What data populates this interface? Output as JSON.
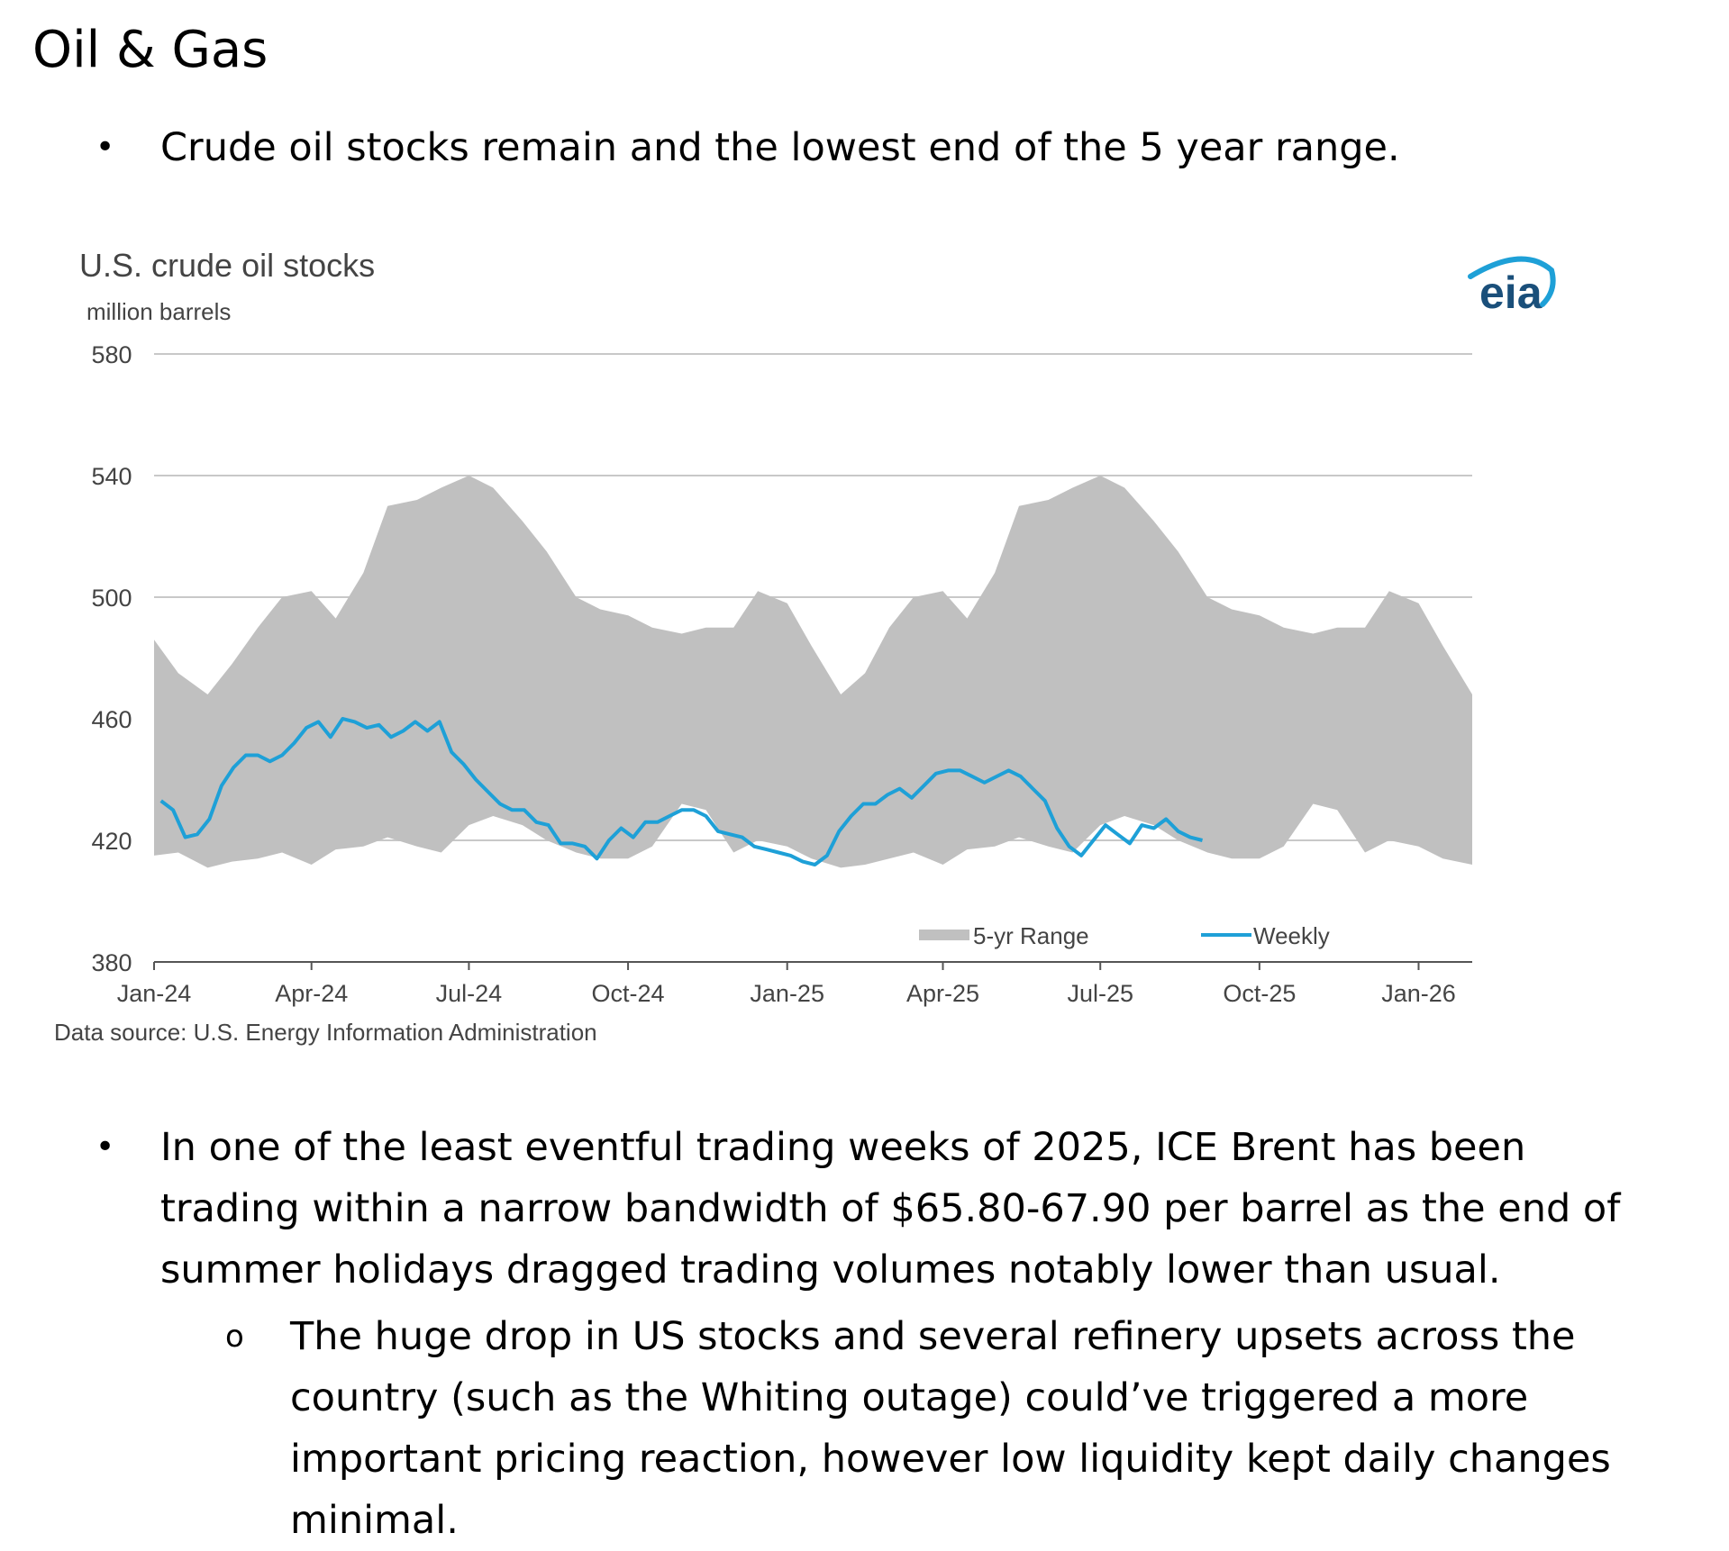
{
  "heading": "Oil & Gas",
  "bullets": {
    "first": "Crude oil stocks remain and the lowest end of the 5 year range.",
    "second_lines": [
      "In one of the least eventful trading weeks of 2025, ICE Brent has been",
      "trading within a narrow bandwidth of $65.80-67.90 per barrel as the end of",
      "summer holidays dragged trading volumes notably lower than usual."
    ],
    "sub_lines": [
      "The huge drop in US stocks and several refinery upsets across the",
      "country (such as the Whiting outage) could’ve triggered a more",
      "important pricing reaction, however low liquidity kept daily changes",
      "minimal."
    ],
    "bullet_glyph": "•",
    "sub_bullet_glyph": "o"
  },
  "chart_data": {
    "type": "area",
    "title": "U.S. crude oil stocks",
    "ylabel": "million barrels",
    "source": "Data source: U.S. Energy Information Administration",
    "logo_text": "eia",
    "ylim": [
      380,
      580
    ],
    "yticks": [
      380,
      420,
      460,
      500,
      540,
      580
    ],
    "xlim": [
      "2024-01-01",
      "2026-02-01"
    ],
    "xtick_dates": [
      "2024-01-01",
      "2024-04-01",
      "2024-07-01",
      "2024-10-01",
      "2025-01-01",
      "2025-04-01",
      "2025-07-01",
      "2025-10-01",
      "2026-01-01"
    ],
    "xtick_labels": [
      "Jan-24",
      "Apr-24",
      "Jul-24",
      "Oct-24",
      "Jan-25",
      "Apr-25",
      "Jul-25",
      "Oct-25",
      "Jan-26"
    ],
    "grid": true,
    "legend_position": "bottom-right",
    "colors": {
      "range": "#c0c0c0",
      "weekly": "#1ea0d7",
      "grid": "#c8c8c8",
      "axis": "#555555",
      "logo": "#1a4f7a",
      "logo_arc": "#1ea0d7"
    },
    "series": [
      {
        "name": "5-yr Range",
        "kind": "band",
        "x": [
          "2024-01-01",
          "2024-01-15",
          "2024-02-01",
          "2024-02-15",
          "2024-03-01",
          "2024-03-15",
          "2024-04-01",
          "2024-04-15",
          "2024-05-01",
          "2024-05-15",
          "2024-06-01",
          "2024-06-15",
          "2024-07-01",
          "2024-07-15",
          "2024-08-01",
          "2024-08-15",
          "2024-09-01",
          "2024-09-15",
          "2024-10-01",
          "2024-10-15",
          "2024-11-01",
          "2024-11-15",
          "2024-12-01",
          "2024-12-15",
          "2025-01-01",
          "2025-01-15",
          "2025-02-01",
          "2025-02-15",
          "2025-03-01",
          "2025-03-15",
          "2025-04-01",
          "2025-04-15",
          "2025-05-01",
          "2025-05-15",
          "2025-06-01",
          "2025-06-15",
          "2025-07-01",
          "2025-07-15",
          "2025-08-01",
          "2025-08-15",
          "2025-09-01",
          "2025-09-15",
          "2025-10-01",
          "2025-10-15",
          "2025-11-01",
          "2025-11-15",
          "2025-12-01",
          "2025-12-15",
          "2026-01-01",
          "2026-01-15",
          "2026-02-01"
        ],
        "high": [
          486,
          475,
          468,
          478,
          490,
          500,
          502,
          493,
          508,
          530,
          532,
          536,
          540,
          536,
          525,
          515,
          500,
          496,
          494,
          490,
          488,
          490,
          490,
          502,
          498,
          484,
          468,
          475,
          490,
          500,
          502,
          493,
          508,
          530,
          532,
          536,
          540,
          536,
          525,
          515,
          500,
          496,
          494,
          490,
          488,
          490,
          490,
          502,
          498,
          484,
          468
        ],
        "low": [
          415,
          416,
          411,
          413,
          414,
          416,
          412,
          417,
          418,
          421,
          418,
          416,
          425,
          428,
          425,
          420,
          416,
          414,
          414,
          418,
          432,
          430,
          416,
          420,
          418,
          414,
          411,
          412,
          414,
          416,
          412,
          417,
          418,
          421,
          418,
          416,
          425,
          428,
          425,
          420,
          416,
          414,
          414,
          418,
          432,
          430,
          416,
          420,
          418,
          414,
          412
        ]
      },
      {
        "name": "Weekly",
        "kind": "line",
        "x": [
          "2024-01-05",
          "2024-01-12",
          "2024-01-19",
          "2024-01-26",
          "2024-02-02",
          "2024-02-09",
          "2024-02-16",
          "2024-02-23",
          "2024-03-01",
          "2024-03-08",
          "2024-03-15",
          "2024-03-22",
          "2024-03-29",
          "2024-04-05",
          "2024-04-12",
          "2024-04-19",
          "2024-04-26",
          "2024-05-03",
          "2024-05-10",
          "2024-05-17",
          "2024-05-24",
          "2024-05-31",
          "2024-06-07",
          "2024-06-14",
          "2024-06-21",
          "2024-06-28",
          "2024-07-05",
          "2024-07-12",
          "2024-07-19",
          "2024-07-26",
          "2024-08-02",
          "2024-08-09",
          "2024-08-16",
          "2024-08-23",
          "2024-08-30",
          "2024-09-06",
          "2024-09-13",
          "2024-09-20",
          "2024-09-27",
          "2024-10-04",
          "2024-10-11",
          "2024-10-18",
          "2024-10-25",
          "2024-11-01",
          "2024-11-08",
          "2024-11-15",
          "2024-11-22",
          "2024-11-29",
          "2024-12-06",
          "2024-12-13",
          "2024-12-20",
          "2024-12-27",
          "2025-01-03",
          "2025-01-10",
          "2025-01-17",
          "2025-01-24",
          "2025-01-31",
          "2025-02-07",
          "2025-02-14",
          "2025-02-21",
          "2025-02-28",
          "2025-03-07",
          "2025-03-14",
          "2025-03-21",
          "2025-03-28",
          "2025-04-04",
          "2025-04-11",
          "2025-04-18",
          "2025-04-25",
          "2025-05-02",
          "2025-05-09",
          "2025-05-16",
          "2025-05-23",
          "2025-05-30",
          "2025-06-06",
          "2025-06-13",
          "2025-06-20",
          "2025-06-27",
          "2025-07-04",
          "2025-07-11",
          "2025-07-18",
          "2025-07-25",
          "2025-08-01",
          "2025-08-08",
          "2025-08-15",
          "2025-08-22",
          "2025-08-29"
        ],
        "values": [
          433,
          430,
          421,
          422,
          427,
          438,
          444,
          448,
          448,
          446,
          448,
          452,
          457,
          459,
          454,
          460,
          459,
          457,
          458,
          454,
          456,
          459,
          456,
          459,
          449,
          445,
          440,
          436,
          432,
          430,
          430,
          426,
          425,
          419,
          419,
          418,
          414,
          420,
          424,
          421,
          426,
          426,
          428,
          430,
          430,
          428,
          423,
          422,
          421,
          418,
          417,
          416,
          415,
          413,
          412,
          415,
          423,
          428,
          432,
          432,
          435,
          437,
          434,
          438,
          442,
          443,
          443,
          441,
          439,
          441,
          443,
          441,
          437,
          433,
          424,
          418,
          415,
          420,
          425,
          422,
          419,
          425,
          424,
          427,
          423,
          421,
          420
        ]
      }
    ]
  }
}
